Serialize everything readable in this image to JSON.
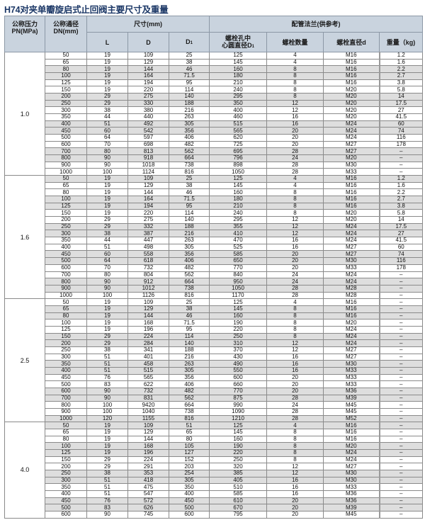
{
  "title": "H74对夹单瓣旋启式止回阀主要尺寸及重量",
  "headers": {
    "pressure": "公称压力\nPN(MPa)",
    "pressure_l1": "公称压力",
    "pressure_l2": "PN(MPa)",
    "dn_l1": "公称通径",
    "dn_l2": "DN(mm)",
    "size_group": "尺寸(mm)",
    "flange_group": "配管法兰(供参考)",
    "L": "L",
    "D": "D",
    "D1": "D",
    "D1_sub": "1",
    "bolt_circle_l1": "螺栓孔中",
    "bolt_circle_l2": "心圆直径D",
    "bolt_circle_sub": "1",
    "bolt_count": "螺栓数量",
    "bolt_diameter": "螺栓直径d",
    "weight": "重量（kg)"
  },
  "sections": [
    {
      "pressure": "1.0",
      "rows": [
        [
          "50",
          "19",
          "109",
          "25",
          "125",
          "4",
          "M16",
          "1.2"
        ],
        [
          "65",
          "19",
          "129",
          "38",
          "145",
          "4",
          "M16",
          "1.6"
        ],
        [
          "80",
          "19",
          "144",
          "46",
          "160",
          "8",
          "M16",
          "2.2"
        ],
        [
          "100",
          "19",
          "164",
          "71.5",
          "180",
          "8",
          "M16",
          "2.7"
        ],
        [
          "125",
          "19",
          "194",
          "95",
          "210",
          "8",
          "M16",
          "3.8"
        ],
        [
          "150",
          "19",
          "220",
          "114",
          "240",
          "8",
          "M20",
          "5.8"
        ],
        [
          "200",
          "29",
          "275",
          "140",
          "295",
          "8",
          "M20",
          "14"
        ],
        [
          "250",
          "29",
          "330",
          "188",
          "350",
          "12",
          "M20",
          "17.5"
        ],
        [
          "300",
          "38",
          "380",
          "216",
          "400",
          "12",
          "M20",
          "27"
        ],
        [
          "350",
          "44",
          "440",
          "263",
          "460",
          "16",
          "M20",
          "41.5"
        ],
        [
          "400",
          "51",
          "492",
          "305",
          "515",
          "16",
          "M24",
          "60"
        ],
        [
          "450",
          "60",
          "542",
          "356",
          "565",
          "20",
          "M24",
          "74"
        ],
        [
          "500",
          "64",
          "597",
          "406",
          "620",
          "20",
          "M24",
          "116"
        ],
        [
          "600",
          "70",
          "698",
          "482",
          "725",
          "20",
          "M27",
          "178"
        ],
        [
          "700",
          "80",
          "813",
          "562",
          "695",
          "28",
          "M27",
          "–"
        ],
        [
          "800",
          "90",
          "918",
          "664",
          "796",
          "24",
          "M20",
          "–"
        ],
        [
          "900",
          "90",
          "1018",
          "738",
          "898",
          "28",
          "M30",
          "–"
        ],
        [
          "1000",
          "100",
          "1124",
          "816",
          "1050",
          "28",
          "M33",
          "–"
        ]
      ]
    },
    {
      "pressure": "1.6",
      "rows": [
        [
          "50",
          "19",
          "109",
          "25",
          "125",
          "4",
          "M16",
          "1.2"
        ],
        [
          "65",
          "19",
          "129",
          "38",
          "145",
          "4",
          "M16",
          "1.6"
        ],
        [
          "80",
          "19",
          "144",
          "46",
          "160",
          "8",
          "M16",
          "2.2"
        ],
        [
          "100",
          "19",
          "164",
          "71.5",
          "180",
          "8",
          "M16",
          "2.7"
        ],
        [
          "125",
          "19",
          "194",
          "95",
          "210",
          "8",
          "M16",
          "3.8"
        ],
        [
          "150",
          "19",
          "220",
          "114",
          "240",
          "8",
          "M20",
          "5.8"
        ],
        [
          "200",
          "29",
          "275",
          "140",
          "295",
          "12",
          "M20",
          "14"
        ],
        [
          "250",
          "29",
          "332",
          "188",
          "355",
          "12",
          "M24",
          "17.5"
        ],
        [
          "300",
          "38",
          "387",
          "216",
          "410",
          "12",
          "M24",
          "27"
        ],
        [
          "350",
          "44",
          "447",
          "263",
          "470",
          "16",
          "M24",
          "41.5"
        ],
        [
          "400",
          "51",
          "498",
          "305",
          "525",
          "16",
          "M27",
          "60"
        ],
        [
          "450",
          "60",
          "558",
          "356",
          "585",
          "20",
          "M27",
          "74"
        ],
        [
          "500",
          "64",
          "618",
          "406",
          "650",
          "20",
          "M30",
          "116"
        ],
        [
          "600",
          "70",
          "732",
          "482",
          "770",
          "20",
          "M33",
          "178"
        ],
        [
          "700",
          "80",
          "804",
          "562",
          "840",
          "24",
          "M24",
          "–"
        ],
        [
          "800",
          "90",
          "912",
          "664",
          "950",
          "24",
          "M24",
          "–"
        ],
        [
          "900",
          "90",
          "1012",
          "738",
          "1050",
          "28",
          "M28",
          "–"
        ],
        [
          "1000",
          "100",
          "1126",
          "816",
          "1170",
          "28",
          "M28",
          "–"
        ]
      ]
    },
    {
      "pressure": "2.5",
      "rows": [
        [
          "50",
          "19",
          "109",
          "25",
          "125",
          "4",
          "M16",
          "–"
        ],
        [
          "65",
          "19",
          "129",
          "38",
          "145",
          "8",
          "M16",
          "–"
        ],
        [
          "80",
          "19",
          "144",
          "46",
          "160",
          "8",
          "M16",
          "–"
        ],
        [
          "100",
          "19",
          "168",
          "71.5",
          "190",
          "8",
          "M20",
          "–"
        ],
        [
          "125",
          "19",
          "196",
          "95",
          "220",
          "8",
          "M24",
          "–"
        ],
        [
          "150",
          "29",
          "224",
          "114",
          "250",
          "8",
          "M24",
          "–"
        ],
        [
          "200",
          "29",
          "284",
          "140",
          "310",
          "12",
          "M24",
          "–"
        ],
        [
          "250",
          "38",
          "341",
          "188",
          "370",
          "12",
          "M27",
          "–"
        ],
        [
          "300",
          "51",
          "401",
          "216",
          "430",
          "16",
          "M27",
          "–"
        ],
        [
          "350",
          "51",
          "458",
          "263",
          "490",
          "16",
          "M30",
          "–"
        ],
        [
          "400",
          "51",
          "515",
          "305",
          "550",
          "16",
          "M33",
          "–"
        ],
        [
          "450",
          "76",
          "565",
          "356",
          "600",
          "20",
          "M33",
          "–"
        ],
        [
          "500",
          "83",
          "622",
          "406",
          "660",
          "20",
          "M33",
          "–"
        ],
        [
          "600",
          "90",
          "732",
          "482",
          "770",
          "20",
          "M36",
          "–"
        ],
        [
          "700",
          "90",
          "831",
          "562",
          "875",
          "28",
          "M39",
          "–"
        ],
        [
          "800",
          "100",
          "9420",
          "664",
          "990",
          "24",
          "M45",
          "–"
        ],
        [
          "900",
          "100",
          "1040",
          "738",
          "1090",
          "28",
          "M45",
          "–"
        ],
        [
          "1000",
          "120",
          "1155",
          "816",
          "1210",
          "28",
          "M52",
          "–"
        ]
      ]
    },
    {
      "pressure": "4.0",
      "rows": [
        [
          "50",
          "19",
          "109",
          "51",
          "125",
          "4",
          "M16",
          "–"
        ],
        [
          "65",
          "19",
          "129",
          "65",
          "145",
          "8",
          "M16",
          "–"
        ],
        [
          "80",
          "19",
          "144",
          "80",
          "160",
          "8",
          "M16",
          "–"
        ],
        [
          "100",
          "19",
          "168",
          "105",
          "190",
          "8",
          "M20",
          "–"
        ],
        [
          "125",
          "19",
          "196",
          "127",
          "220",
          "8",
          "M24",
          "–"
        ],
        [
          "150",
          "29",
          "224",
          "152",
          "250",
          "8",
          "M24",
          "–"
        ],
        [
          "200",
          "29",
          "291",
          "203",
          "320",
          "12",
          "M27",
          "–"
        ],
        [
          "250",
          "38",
          "353",
          "254",
          "385",
          "12",
          "M30",
          "–"
        ],
        [
          "300",
          "51",
          "418",
          "305",
          "405",
          "16",
          "M30",
          "–"
        ],
        [
          "350",
          "51",
          "475",
          "350",
          "510",
          "16",
          "M33",
          "–"
        ],
        [
          "400",
          "51",
          "547",
          "400",
          "585",
          "16",
          "M36",
          "–"
        ],
        [
          "450",
          "76",
          "572",
          "450",
          "610",
          "20",
          "M36",
          "–"
        ],
        [
          "500",
          "83",
          "626",
          "500",
          "670",
          "20",
          "M39",
          "–"
        ],
        [
          "600",
          "90",
          "745",
          "600",
          "795",
          "20",
          "M45",
          "–"
        ]
      ]
    }
  ],
  "colors": {
    "title": "#1b3766",
    "header_bg": "#c9d3de",
    "row_shade": "#dedede"
  }
}
